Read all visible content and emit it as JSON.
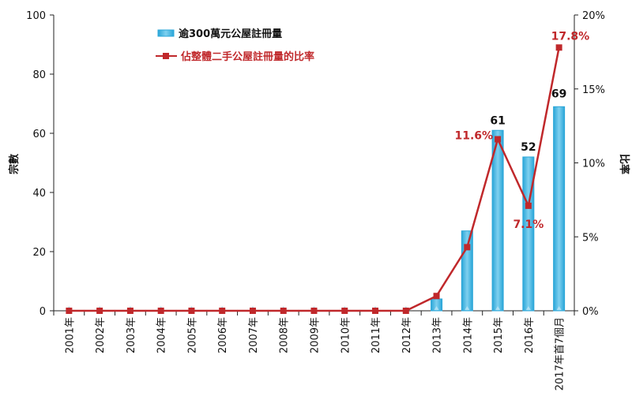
{
  "chart_data": {
    "type": "bar+line",
    "categories": [
      "2001年",
      "2002年",
      "2003年",
      "2004年",
      "2005年",
      "2006年",
      "2007年",
      "2008年",
      "2009年",
      "2010年",
      "2011年",
      "2012年",
      "2013年",
      "2014年",
      "2015年",
      "2016年",
      "2017年首7個月"
    ],
    "series": [
      {
        "name": "逾300萬元公屋註冊量",
        "type": "bar",
        "axis": "left",
        "values": [
          0,
          0,
          0,
          0,
          0,
          0,
          0,
          0,
          0,
          0,
          0,
          0,
          4,
          27,
          61,
          52,
          69
        ],
        "data_labels": {
          "14": "61",
          "15": "52",
          "16": "69"
        }
      },
      {
        "name": "佔整體二手公屋註冊量的比率",
        "type": "line",
        "axis": "right",
        "values": [
          0,
          0,
          0,
          0,
          0,
          0,
          0,
          0,
          0,
          0,
          0,
          0,
          1.0,
          4.3,
          11.6,
          7.1,
          17.8
        ],
        "data_labels": {
          "14": "11.6%",
          "15": "7.1%",
          "16": "17.8%"
        }
      }
    ],
    "ylabel": "宗數",
    "y2label": "比率",
    "ylim": [
      0,
      100
    ],
    "y2lim": [
      0,
      20
    ],
    "yticks": [
      "0",
      "20",
      "40",
      "60",
      "80",
      "100"
    ],
    "y2ticks": [
      "0%",
      "5%",
      "10%",
      "15%",
      "20%"
    ],
    "legend_position": "top-left",
    "grid": false,
    "colors": {
      "bar": "#3fb1dd",
      "bar_light": "#aee0f4",
      "line": "#c0282b"
    }
  }
}
